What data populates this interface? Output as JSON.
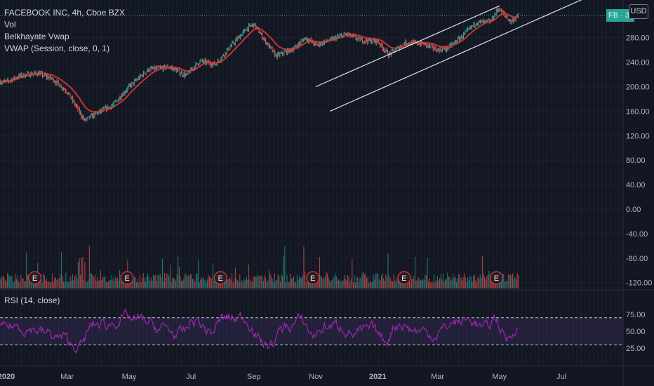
{
  "legend": {
    "title": "FACEBOOK INC, 4h, Cboe BZX",
    "vol": "Vol",
    "belkhayate": "Belkhayate Vwap",
    "vwap": "VWAP (Session, close, 0, 1)"
  },
  "rsi_label": "RSI (14, close)",
  "currency_button": "USD",
  "price_tag": "FB · 3",
  "colors": {
    "background": "#131722",
    "up": "#26a69a",
    "down": "#ef5350",
    "vwap_red": "#e53935",
    "rsi_line": "#9c27b0",
    "earnings_marker": "#e53935",
    "channel": "#e0e3eb"
  },
  "chart_data": [
    {
      "type": "candlestick",
      "title": "FACEBOOK INC, 4h, Cboe BZX",
      "x_ticks": [
        "2020",
        "Mar",
        "May",
        "Jul",
        "Sep",
        "Nov",
        "2021",
        "Mar",
        "May",
        "Jul"
      ],
      "y_ticks": [
        "280.00",
        "240.00",
        "200.00",
        "160.00",
        "120.00",
        "80.00",
        "40.00",
        "0.00",
        "-40.00",
        "-80.00",
        "-120.00"
      ],
      "ylim": [
        -120,
        320
      ],
      "price_path": [
        {
          "x": "2020-01-01",
          "y": 208
        },
        {
          "x": "2020-01-15",
          "y": 218
        },
        {
          "x": "2020-02-01",
          "y": 222
        },
        {
          "x": "2020-02-15",
          "y": 213
        },
        {
          "x": "2020-03-01",
          "y": 192
        },
        {
          "x": "2020-03-18",
          "y": 145
        },
        {
          "x": "2020-04-01",
          "y": 158
        },
        {
          "x": "2020-04-15",
          "y": 170
        },
        {
          "x": "2020-05-01",
          "y": 200
        },
        {
          "x": "2020-05-20",
          "y": 228
        },
        {
          "x": "2020-06-10",
          "y": 232
        },
        {
          "x": "2020-06-26",
          "y": 218
        },
        {
          "x": "2020-07-10",
          "y": 242
        },
        {
          "x": "2020-07-25",
          "y": 236
        },
        {
          "x": "2020-08-07",
          "y": 262
        },
        {
          "x": "2020-08-25",
          "y": 295
        },
        {
          "x": "2020-09-01",
          "y": 302
        },
        {
          "x": "2020-09-15",
          "y": 268
        },
        {
          "x": "2020-09-23",
          "y": 250
        },
        {
          "x": "2020-10-10",
          "y": 262
        },
        {
          "x": "2020-10-22",
          "y": 280
        },
        {
          "x": "2020-11-01",
          "y": 268
        },
        {
          "x": "2020-11-15",
          "y": 276
        },
        {
          "x": "2020-12-01",
          "y": 286
        },
        {
          "x": "2020-12-15",
          "y": 276
        },
        {
          "x": "2021-01-01",
          "y": 274
        },
        {
          "x": "2021-01-12",
          "y": 252
        },
        {
          "x": "2021-01-28",
          "y": 272
        },
        {
          "x": "2021-02-15",
          "y": 270
        },
        {
          "x": "2021-03-01",
          "y": 260
        },
        {
          "x": "2021-03-10",
          "y": 262
        },
        {
          "x": "2021-03-25",
          "y": 282
        },
        {
          "x": "2021-04-08",
          "y": 305
        },
        {
          "x": "2021-04-22",
          "y": 306
        },
        {
          "x": "2021-04-30",
          "y": 328
        },
        {
          "x": "2021-05-12",
          "y": 306
        },
        {
          "x": "2021-05-20",
          "y": 316
        }
      ],
      "channel": [
        {
          "from": {
            "x": "2020-11-01",
            "y": 200
          },
          "to": {
            "x": "2021-05-01",
            "y": 332
          }
        },
        {
          "from": {
            "x": "2020-11-15",
            "y": 160
          },
          "to": {
            "x": "2021-07-25",
            "y": 345
          }
        }
      ],
      "last_price_line": 316
    },
    {
      "type": "bar",
      "title": "Vol",
      "note": "volume histogram, relative heights",
      "earnings_markers": [
        "2020-01-29",
        "2020-04-29",
        "2020-07-30",
        "2020-10-29",
        "2021-01-27",
        "2021-04-28"
      ],
      "earnings_label": "E"
    },
    {
      "type": "line",
      "title": "RSI (14, close)",
      "y_ticks": [
        "75.00",
        "50.00",
        "25.00"
      ],
      "ylim": [
        15,
        95
      ],
      "bands": [
        70,
        30
      ],
      "range_low": 28,
      "range_high": 80
    }
  ]
}
